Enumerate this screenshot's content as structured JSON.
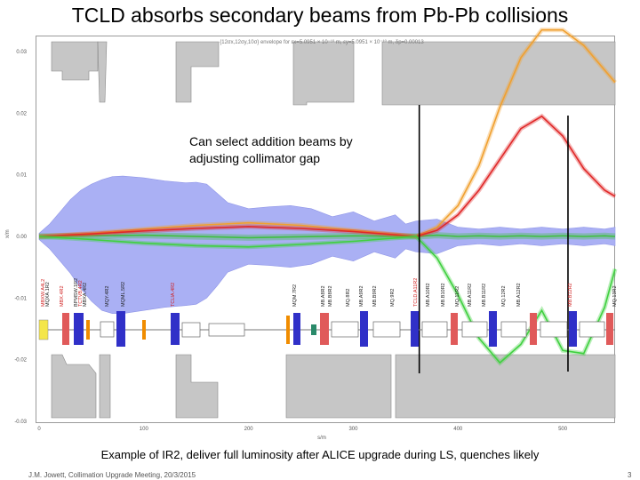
{
  "slide": {
    "title": "TCLD absorbs secondary beams from Pb-Pb collisions",
    "caption": "Example of IR2, deliver full luminosity after ALICE upgrade during LS, quenches likely",
    "footer": "J.M. Jowett, Collimation Upgrade Meeting, 20/3/2015",
    "page_number": "3"
  },
  "plot": {
    "header": "{12σx,12σy,10σ} envelope for εx=5.0951 × 10⁻¹⁰ m, εy=5.0951 × 10⁻¹⁰ m, δp=0.00013",
    "annotation": "Can select addition beams by\nadjusting collimator gap",
    "y_axis_label": "x/m",
    "x_axis_label": "s/m",
    "y_ticks": [
      "0.03",
      "0.02",
      "0.01",
      "0.00",
      "-0.01",
      "-0.02",
      "-0.03"
    ],
    "x_ticks": [
      "0",
      "100",
      "200",
      "300",
      "400",
      "500"
    ],
    "element_labels": [
      "MBXW.A4L2",
      "MQXA.1R2",
      "MBX.4R2",
      "BPMSW.1R2",
      "TCTVB.4R2",
      "MBXA.4R2",
      "MQY.4R2",
      "MQML.5R2",
      "TCLIA.4R2",
      "MQM.7R2",
      "MB.A8R2",
      "MB.B8R2",
      "MQ.8R2",
      "MB.A9R2",
      "MB.B9R2",
      "MQ.9R2",
      "TCLD.A11R2",
      "MB.A10R2",
      "MB.B10R2",
      "MQ.11R2",
      "MB.A11R2",
      "MB.B11R2",
      "MQ.12R2",
      "MB.A12R2",
      "MB.B12R2",
      "MQ.13R2"
    ],
    "colors": {
      "envelope": "#aab0f4",
      "aperture": "#c6c6c6",
      "main_beam": "#3fbf3f",
      "secondary_beam_orange": "#f0a030",
      "secondary_beam_red": "#e02828",
      "secondary_beam_green": "#40d040",
      "marker_line": "#000000",
      "magnet_blue": "#3030c8",
      "magnet_red": "#e05a5a",
      "collimator_orange": "#f08c00"
    }
  },
  "chart_data": {
    "type": "line",
    "title": "{12σx,12σy,10σ} envelope for εx=5.0951 × 10⁻¹⁰ m, εy=5.0951 × 10⁻¹⁰ m, δp=0.00013",
    "xlabel": "s/m",
    "ylabel": "x/m",
    "xlim": [
      0,
      550
    ],
    "ylim": [
      -0.03,
      0.03
    ],
    "x_ticks": [
      0,
      100,
      200,
      300,
      400,
      500
    ],
    "y_ticks": [
      -0.03,
      -0.02,
      -0.01,
      0.0,
      0.01,
      0.02,
      0.03
    ],
    "envelope_upper": {
      "x": [
        0,
        10,
        20,
        30,
        40,
        50,
        60,
        70,
        80,
        100,
        120,
        140,
        150,
        160,
        170,
        180,
        200,
        220,
        240,
        260,
        280,
        300,
        320,
        340,
        350,
        360,
        380,
        400,
        420,
        440,
        460,
        480,
        500,
        520,
        540,
        550
      ],
      "y": [
        0.0005,
        0.002,
        0.004,
        0.006,
        0.0075,
        0.0085,
        0.0092,
        0.0097,
        0.0098,
        0.0095,
        0.009,
        0.0087,
        0.0088,
        0.0085,
        0.007,
        0.0055,
        0.0045,
        0.0048,
        0.005,
        0.0045,
        0.0032,
        0.004,
        0.0025,
        0.0035,
        0.002,
        0.0025,
        0.0028,
        0.0015,
        0.0012,
        0.0015,
        0.0012,
        0.0015,
        0.0012,
        0.0015,
        0.0012,
        0.0015
      ]
    },
    "envelope_lower": {
      "x": [
        0,
        10,
        20,
        30,
        40,
        50,
        60,
        70,
        80,
        100,
        120,
        140,
        150,
        160,
        170,
        180,
        200,
        220,
        240,
        260,
        280,
        300,
        320,
        340,
        350,
        360,
        380,
        400,
        420,
        440,
        460,
        480,
        500,
        520,
        540,
        550
      ],
      "y": [
        -0.0005,
        -0.002,
        -0.004,
        -0.006,
        -0.0085,
        -0.0105,
        -0.012,
        -0.0125,
        -0.0125,
        -0.012,
        -0.0115,
        -0.0112,
        -0.011,
        -0.01,
        -0.008,
        -0.0058,
        -0.0045,
        -0.0047,
        -0.005,
        -0.0045,
        -0.0032,
        -0.004,
        -0.0025,
        -0.0035,
        -0.002,
        -0.0025,
        -0.0028,
        -0.0015,
        -0.0012,
        -0.0015,
        -0.0012,
        -0.0015,
        -0.0012,
        -0.0015,
        -0.0012,
        -0.0015
      ]
    },
    "series": [
      {
        "x": [
          0,
          100,
          200,
          300,
          360,
          380,
          400,
          420,
          440,
          460,
          480,
          500,
          520,
          540,
          550
        ],
        "y": [
          0.0,
          0.0002,
          -0.0002,
          0.0001,
          0.0,
          0.0002,
          0.0,
          0.0001,
          0.0,
          0.0001,
          0.0,
          0.0001,
          0.0,
          0.0001,
          0.0
        ]
      },
      {
        "x": [
          0,
          50,
          100,
          150,
          200,
          250,
          300,
          360,
          380,
          400,
          420,
          440,
          460,
          480,
          500,
          520,
          540,
          550
        ],
        "y": [
          0.0,
          0.0005,
          0.0012,
          0.0018,
          0.0022,
          0.0018,
          0.001,
          0.0,
          0.0015,
          0.005,
          0.0115,
          0.021,
          0.029,
          0.0335,
          0.0335,
          0.031,
          0.027,
          0.025
        ]
      },
      {
        "x": [
          0,
          50,
          100,
          150,
          200,
          250,
          300,
          360,
          380,
          400,
          420,
          440,
          460,
          480,
          500,
          520,
          540,
          550
        ],
        "y": [
          0.0,
          0.0004,
          0.0009,
          0.0013,
          0.0016,
          0.0013,
          0.0008,
          0.0,
          0.001,
          0.0035,
          0.0075,
          0.0125,
          0.0175,
          0.0195,
          0.0163,
          0.011,
          0.0075,
          0.0065
        ]
      },
      {
        "x": [
          0,
          50,
          100,
          150,
          200,
          250,
          300,
          360,
          380,
          400,
          420,
          440,
          460,
          480,
          500,
          520,
          540,
          550
        ],
        "y": [
          0.0,
          -0.0005,
          -0.0011,
          -0.0015,
          -0.0017,
          -0.0013,
          -0.0008,
          0.0,
          -0.0035,
          -0.0095,
          -0.0165,
          -0.0205,
          -0.0175,
          -0.012,
          -0.0185,
          -0.019,
          -0.0115,
          -0.0053
        ]
      }
    ],
    "vertical_markers_x": [
      363,
      505
    ]
  }
}
